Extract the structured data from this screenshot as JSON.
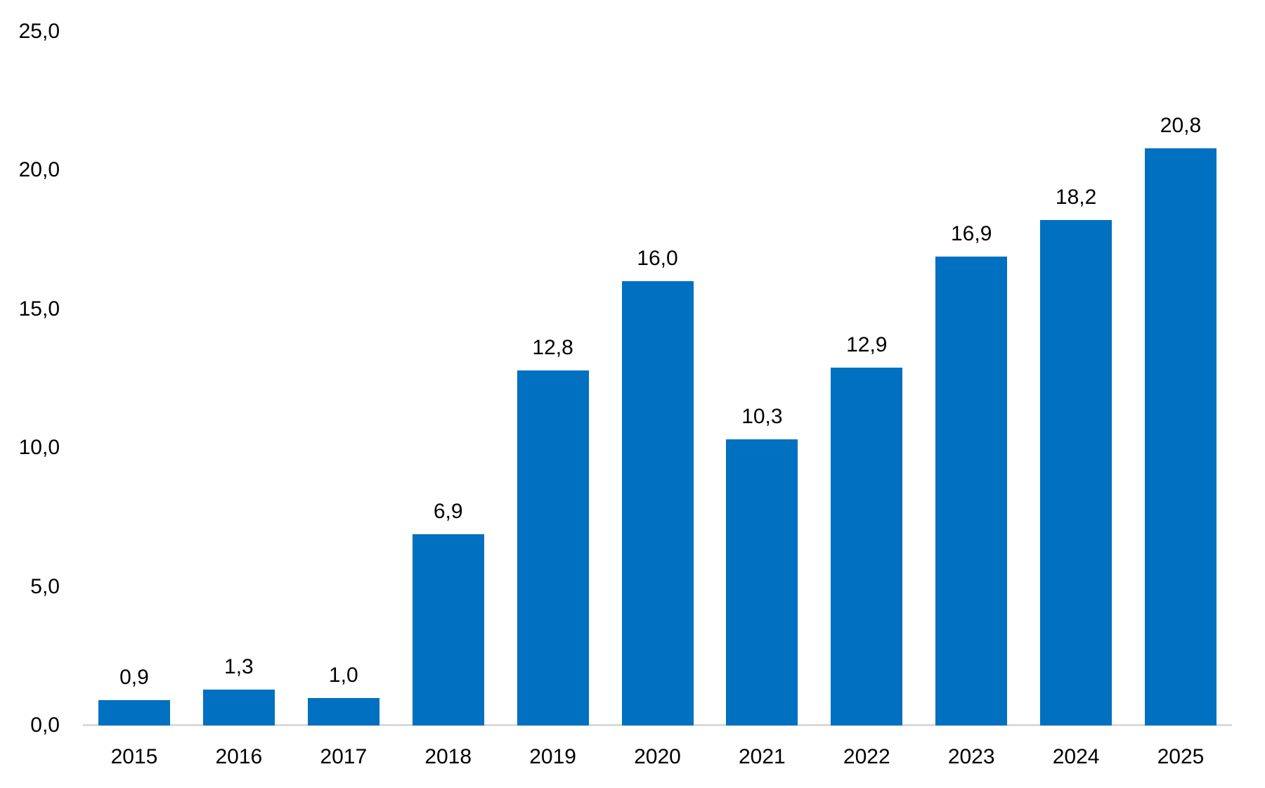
{
  "chart_data": {
    "type": "bar",
    "title": "",
    "xlabel": "",
    "ylabel": "",
    "categories": [
      "2015",
      "2016",
      "2017",
      "2018",
      "2019",
      "2020",
      "2021",
      "2022",
      "2023",
      "2024",
      "2025"
    ],
    "values": [
      0.9,
      1.3,
      1.0,
      6.9,
      12.8,
      16.0,
      10.3,
      12.9,
      16.9,
      18.2,
      20.8
    ],
    "value_labels": [
      "0,9",
      "1,3",
      "1,0",
      "6,9",
      "12,8",
      "16,0",
      "10,3",
      "12,9",
      "16,9",
      "18,2",
      "20,8"
    ],
    "yticks": [
      {
        "value": 0,
        "label": "0,0"
      },
      {
        "value": 5,
        "label": "5,0"
      },
      {
        "value": 10,
        "label": "10,0"
      },
      {
        "value": 15,
        "label": "15,0"
      },
      {
        "value": 20,
        "label": "20,0"
      },
      {
        "value": 25,
        "label": "25,0"
      }
    ],
    "ylim": [
      0,
      25
    ],
    "ytick_interval": 5,
    "grid": false,
    "legend": "none",
    "decimal_separator": ",",
    "colors": {
      "bar": "#0070C0",
      "axis_line": "#D9D9D9",
      "label_text": "#000000",
      "background": "#FFFFFF"
    }
  }
}
